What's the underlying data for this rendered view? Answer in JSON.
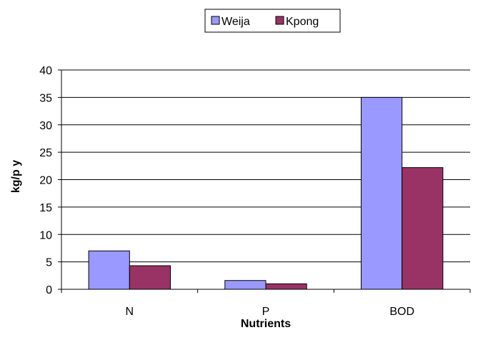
{
  "chart_data": {
    "type": "bar",
    "categories": [
      "N",
      "P",
      "BOD"
    ],
    "series": [
      {
        "name": "Weija",
        "values": [
          7,
          1.6,
          35
        ],
        "color": "#9999ff"
      },
      {
        "name": "Kpong",
        "values": [
          4.3,
          1.0,
          22.2
        ],
        "color": "#993366"
      }
    ],
    "title": "",
    "xlabel": "Nutrients",
    "ylabel": "kg/p y",
    "ylim": [
      0,
      40
    ],
    "yticks": [
      0,
      5,
      10,
      15,
      20,
      25,
      30,
      35,
      40
    ],
    "grid": true,
    "legend_position": "top-center"
  }
}
